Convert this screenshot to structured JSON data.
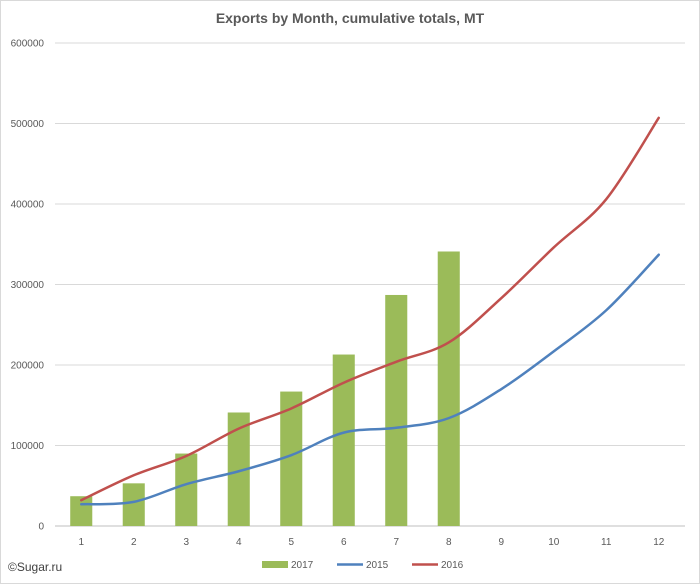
{
  "chart_data": {
    "type": "bar",
    "title": "Exports by Month, cumulative totals, MT",
    "xlabel": "",
    "ylabel": "",
    "categories": [
      "1",
      "2",
      "3",
      "4",
      "5",
      "6",
      "7",
      "8",
      "9",
      "10",
      "11",
      "12"
    ],
    "ylim": [
      0,
      600000
    ],
    "yticks": [
      0,
      100000,
      200000,
      300000,
      400000,
      500000,
      600000
    ],
    "ytick_labels": [
      "0",
      "100000",
      "200000",
      "300000",
      "400000",
      "500000",
      "600000"
    ],
    "grid": true,
    "legend_position": "bottom",
    "series": [
      {
        "name": "2017",
        "kind": "bar",
        "color": "#9bbb59",
        "values": [
          37000,
          53000,
          90000,
          141000,
          167000,
          213000,
          287000,
          341000,
          null,
          null,
          null,
          null
        ]
      },
      {
        "name": "2015",
        "kind": "line",
        "color": "#4f81bd",
        "values": [
          27000,
          30000,
          52000,
          68000,
          88000,
          116000,
          122000,
          134000,
          170000,
          217000,
          268000,
          337000
        ]
      },
      {
        "name": "2016",
        "kind": "line",
        "color": "#c0504d",
        "values": [
          32000,
          63000,
          87000,
          121000,
          146000,
          178000,
          204000,
          228000,
          283000,
          346000,
          406000,
          507000
        ]
      }
    ]
  },
  "copyright": "©Sugar.ru"
}
